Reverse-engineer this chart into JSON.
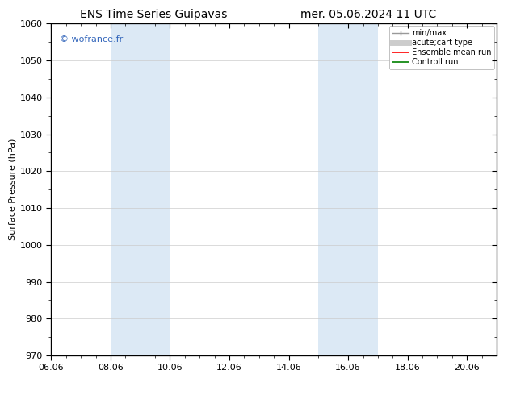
{
  "title_left": "ENS Time Series Guipavas",
  "title_right": "mer. 05.06.2024 11 UTC",
  "ylabel": "Surface Pressure (hPa)",
  "ylim": [
    970,
    1060
  ],
  "yticks": [
    970,
    980,
    990,
    1000,
    1010,
    1020,
    1030,
    1040,
    1050,
    1060
  ],
  "xlim": [
    0,
    15
  ],
  "xtick_labels": [
    "06.06",
    "08.06",
    "10.06",
    "12.06",
    "14.06",
    "16.06",
    "18.06",
    "20.06"
  ],
  "xtick_positions": [
    0,
    2,
    4,
    6,
    8,
    10,
    12,
    14
  ],
  "minor_xtick_positions": [
    0.5,
    1.0,
    1.5,
    2.0,
    2.5,
    3.0,
    3.5,
    4.0,
    4.5,
    5.0,
    5.5,
    6.0,
    6.5,
    7.0,
    7.5,
    8.0,
    8.5,
    9.0,
    9.5,
    10.0,
    10.5,
    11.0,
    11.5,
    12.0,
    12.5,
    13.0,
    13.5,
    14.0,
    14.5
  ],
  "shaded_bands": [
    {
      "xmin": 2.0,
      "xmax": 4.0
    },
    {
      "xmin": 9.0,
      "xmax": 11.0
    }
  ],
  "shade_color": "#dce9f5",
  "watermark": "© wofrance.fr",
  "watermark_color": "#3366bb",
  "bg_color": "#ffffff",
  "grid_color": "#cccccc",
  "spine_color": "#000000",
  "title_fontsize": 10,
  "axis_fontsize": 8,
  "tick_fontsize": 8,
  "legend_fontsize": 7
}
